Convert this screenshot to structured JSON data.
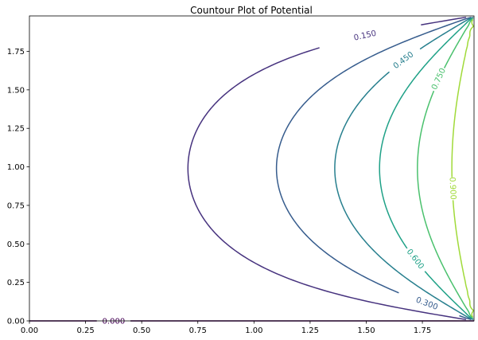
{
  "chart_data": {
    "type": "contour",
    "title": "Countour Plot of Potential",
    "xlabel": "",
    "ylabel": "",
    "xlim": [
      0,
      1.98
    ],
    "ylim": [
      0,
      1.98
    ],
    "x_ticks": [
      "0.00",
      "0.25",
      "0.50",
      "0.75",
      "1.00",
      "1.25",
      "1.50",
      "1.75"
    ],
    "y_ticks": [
      "0.00",
      "0.25",
      "0.50",
      "0.75",
      "1.00",
      "1.25",
      "1.50",
      "1.75"
    ],
    "grid": false,
    "levels": [
      {
        "level": 0.0,
        "label": "0.000",
        "color": "#440154"
      },
      {
        "level": 0.15,
        "label": "0.150",
        "color": "#46327e"
      },
      {
        "level": 0.3,
        "label": "0.300",
        "color": "#365c8d"
      },
      {
        "level": 0.45,
        "label": "0.450",
        "color": "#277f8e"
      },
      {
        "level": 0.6,
        "label": "0.600",
        "color": "#1fa187"
      },
      {
        "level": 0.75,
        "label": "0.750",
        "color": "#4ac16d"
      },
      {
        "level": 0.9,
        "label": "0.900",
        "color": "#a0da39"
      }
    ]
  }
}
